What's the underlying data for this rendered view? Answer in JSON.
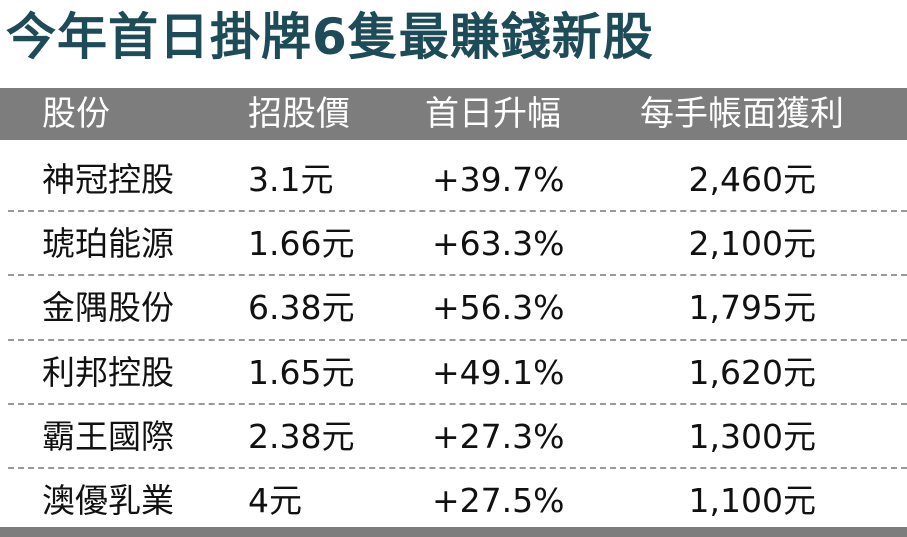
{
  "header": {
    "title": "今年首日掛牌6隻最賺錢新股"
  },
  "table": {
    "columns": [
      "股份",
      "招股價",
      "首日升幅",
      "每手帳面獲利"
    ],
    "rows": [
      [
        "神冠控股",
        "3.1元",
        "+39.7%",
        "2,460元"
      ],
      [
        "琥珀能源",
        "1.66元",
        "+63.3%",
        "2,100元"
      ],
      [
        "金隅股份",
        "6.38元",
        "+56.3%",
        "1,795元"
      ],
      [
        "利邦控股",
        "1.65元",
        "+49.1%",
        "1,620元"
      ],
      [
        "霸王國際",
        "2.38元",
        "+27.3%",
        "1,300元"
      ],
      [
        "澳優乳業",
        "4元",
        "+27.5%",
        "1,100元"
      ]
    ]
  }
}
